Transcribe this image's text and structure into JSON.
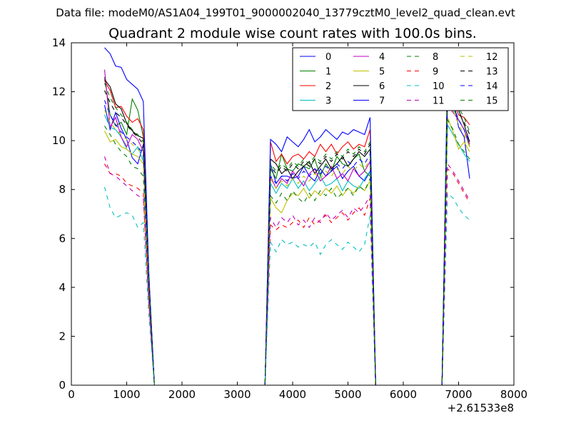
{
  "figure": {
    "suptitle": "Data file: modeM0/AS1A04_199T01_9000002040_13779cztM0_level2_quad_clean.evt",
    "title": "Quadrant 2 module wise count rates with 100.0s bins."
  },
  "chart_data": {
    "type": "line",
    "title": "Quadrant 2 module wise count rates with 100.0s bins.",
    "xlabel": "",
    "ylabel": "",
    "xlim": [
      0,
      8000
    ],
    "ylim": [
      0,
      14
    ],
    "x_offset_label": "+2.61533e8",
    "x_ticks": [
      "0",
      "1000",
      "2000",
      "3000",
      "4000",
      "5000",
      "6000",
      "7000",
      "8000"
    ],
    "y_ticks": [
      "0",
      "2",
      "4",
      "6",
      "8",
      "10",
      "12",
      "14"
    ],
    "grid": false,
    "legend_position": "top-right",
    "x": [
      600,
      700,
      800,
      900,
      1000,
      1100,
      1200,
      1300,
      1400,
      1500,
      1600,
      1700,
      1800,
      1900,
      2000,
      2100,
      2200,
      2300,
      2400,
      2500,
      2600,
      2700,
      2800,
      2900,
      3000,
      3100,
      3200,
      3300,
      3400,
      3500,
      3600,
      3700,
      3800,
      3900,
      4000,
      4100,
      4200,
      4300,
      4400,
      4500,
      4600,
      4700,
      4800,
      4900,
      5000,
      5100,
      5200,
      5300,
      5400,
      5500,
      5600,
      5700,
      5800,
      5900,
      6000,
      6100,
      6200,
      6300,
      6400,
      6500,
      6600,
      6700,
      6800,
      6900,
      7000,
      7100,
      7200
    ],
    "series": [
      {
        "name": "0",
        "color": "#0000ff",
        "dash": "solid",
        "values": [
          11.45,
          10.45,
          11.15,
          10.5,
          10.05,
          9.3,
          9.05,
          9.85,
          4.2,
          0,
          0,
          0,
          0,
          0,
          0,
          0,
          0,
          0,
          0,
          0,
          0,
          0,
          0,
          0,
          0,
          0,
          0,
          0,
          0,
          0,
          9.05,
          8.25,
          8.55,
          8.55,
          8.45,
          8.55,
          8.95,
          8.55,
          8.35,
          8.85,
          8.55,
          8.75,
          8.95,
          8.45,
          8.75,
          8.95,
          8.55,
          8.35,
          8.75,
          0,
          0,
          0,
          0,
          0,
          0,
          0,
          0,
          0,
          0,
          0,
          0,
          0,
          11.95,
          11.75,
          10.55,
          10.15,
          8.45
        ]
      },
      {
        "name": "1",
        "color": "#008000",
        "dash": "solid",
        "values": [
          12.6,
          11.05,
          10.6,
          10.75,
          10.25,
          11.7,
          11.25,
          10.15,
          4.3,
          0,
          0,
          0,
          0,
          0,
          0,
          0,
          0,
          0,
          0,
          0,
          0,
          0,
          0,
          0,
          0,
          0,
          0,
          0,
          0,
          0,
          8.85,
          8.45,
          9.45,
          8.85,
          8.75,
          9.05,
          8.95,
          8.85,
          9.25,
          8.55,
          9.05,
          8.75,
          9.35,
          9.05,
          8.95,
          9.25,
          9.45,
          8.75,
          8.55,
          0,
          0,
          0,
          0,
          0,
          0,
          0,
          0,
          0,
          0,
          0,
          0,
          0,
          11.6,
          11.35,
          10.85,
          10.45,
          9.75
        ]
      },
      {
        "name": "2",
        "color": "#ff0000",
        "dash": "solid",
        "values": [
          12.45,
          12.05,
          11.35,
          11.4,
          11.0,
          10.75,
          10.9,
          10.45,
          4.4,
          0,
          0,
          0,
          0,
          0,
          0,
          0,
          0,
          0,
          0,
          0,
          0,
          0,
          0,
          0,
          0,
          0,
          0,
          0,
          0,
          0,
          9.95,
          9.15,
          9.45,
          9.05,
          9.35,
          9.45,
          9.25,
          9.55,
          9.35,
          9.85,
          9.55,
          9.85,
          9.45,
          9.75,
          9.95,
          9.65,
          9.85,
          9.75,
          10.45,
          0,
          0,
          0,
          0,
          0,
          0,
          0,
          0,
          0,
          0,
          0,
          0,
          0,
          12.15,
          11.65,
          11.05,
          10.95,
          10.65
        ]
      },
      {
        "name": "3",
        "color": "#00bfbf",
        "dash": "solid",
        "values": [
          11.05,
          10.55,
          10.45,
          10.15,
          9.65,
          9.45,
          9.75,
          9.15,
          3.9,
          0,
          0,
          0,
          0,
          0,
          0,
          0,
          0,
          0,
          0,
          0,
          0,
          0,
          0,
          0,
          0,
          0,
          0,
          0,
          0,
          0,
          8.25,
          7.85,
          8.25,
          8.05,
          8.45,
          8.05,
          8.35,
          7.95,
          8.25,
          8.55,
          8.15,
          8.25,
          8.45,
          7.95,
          8.35,
          8.15,
          8.05,
          8.45,
          8.75,
          0,
          0,
          0,
          0,
          0,
          0,
          0,
          0,
          0,
          0,
          0,
          0,
          0,
          10.65,
          10.25,
          9.85,
          9.45,
          9.15
        ]
      },
      {
        "name": "4",
        "color": "#bf00bf",
        "dash": "solid",
        "values": [
          12.9,
          10.55,
          10.95,
          10.15,
          9.75,
          10.25,
          10.05,
          9.55,
          4.1,
          0,
          0,
          0,
          0,
          0,
          0,
          0,
          0,
          0,
          0,
          0,
          0,
          0,
          0,
          0,
          0,
          0,
          0,
          0,
          0,
          0,
          8.55,
          8.05,
          8.45,
          8.25,
          8.75,
          8.45,
          8.15,
          8.65,
          8.85,
          8.35,
          8.55,
          8.95,
          8.45,
          8.65,
          8.35,
          8.85,
          8.55,
          8.75,
          9.15,
          0,
          0,
          0,
          0,
          0,
          0,
          0,
          0,
          0,
          0,
          0,
          0,
          0,
          11.45,
          11.15,
          10.85,
          10.45,
          9.85
        ]
      },
      {
        "name": "5",
        "color": "#bfbf00",
        "dash": "solid",
        "values": [
          10.4,
          9.95,
          10.05,
          9.75,
          9.65,
          9.45,
          9.35,
          9.05,
          3.8,
          0,
          0,
          0,
          0,
          0,
          0,
          0,
          0,
          0,
          0,
          0,
          0,
          0,
          0,
          0,
          0,
          0,
          0,
          0,
          0,
          0,
          7.65,
          7.25,
          7.05,
          7.55,
          7.85,
          7.75,
          8.05,
          7.65,
          7.95,
          7.75,
          8.05,
          7.85,
          8.15,
          7.75,
          8.05,
          7.85,
          8.15,
          7.95,
          8.35,
          0,
          0,
          0,
          0,
          0,
          0,
          0,
          0,
          0,
          0,
          0,
          0,
          0,
          10.95,
          10.35,
          9.65,
          9.95,
          9.55
        ]
      },
      {
        "name": "6",
        "color": "#000000",
        "dash": "solid",
        "values": [
          12.5,
          12.2,
          11.5,
          11.3,
          10.7,
          10.4,
          10.2,
          10.1,
          4.35,
          0,
          0,
          0,
          0,
          0,
          0,
          0,
          0,
          0,
          0,
          0,
          0,
          0,
          0,
          0,
          0,
          0,
          0,
          0,
          0,
          0,
          9.25,
          9.05,
          8.65,
          8.85,
          8.45,
          8.75,
          8.95,
          9.15,
          8.65,
          8.95,
          9.25,
          8.85,
          9.05,
          9.35,
          8.95,
          9.25,
          9.55,
          9.35,
          9.65,
          0,
          0,
          0,
          0,
          0,
          0,
          0,
          0,
          0,
          0,
          0,
          0,
          0,
          12.35,
          12.05,
          11.25,
          10.65,
          9.95
        ]
      },
      {
        "name": "7",
        "color": "#0000ff",
        "dash": "solid",
        "values": [
          13.8,
          13.55,
          13.05,
          13.0,
          12.5,
          12.3,
          12.1,
          11.6,
          4.6,
          0,
          0,
          0,
          0,
          0,
          0,
          0,
          0,
          0,
          0,
          0,
          0,
          0,
          0,
          0,
          0,
          0,
          0,
          0,
          0,
          0,
          10.05,
          9.85,
          9.55,
          10.15,
          9.95,
          9.75,
          10.05,
          10.45,
          9.95,
          10.15,
          10.45,
          10.25,
          10.05,
          10.35,
          10.25,
          10.45,
          10.35,
          10.25,
          10.95,
          0,
          0,
          0,
          0,
          0,
          0,
          0,
          0,
          0,
          0,
          0,
          0,
          0,
          13.1,
          12.85,
          12.05,
          11.55,
          11.35
        ]
      },
      {
        "name": "8",
        "color": "#008000",
        "dash": "dashed",
        "values": [
          10.6,
          10.25,
          9.85,
          9.55,
          9.35,
          8.95,
          8.85,
          8.55,
          3.7,
          0,
          0,
          0,
          0,
          0,
          0,
          0,
          0,
          0,
          0,
          0,
          0,
          0,
          0,
          0,
          0,
          0,
          0,
          0,
          0,
          0,
          7.75,
          7.45,
          7.85,
          7.55,
          7.95,
          7.65,
          7.45,
          7.85,
          7.55,
          7.95,
          7.75,
          8.05,
          7.65,
          7.85,
          8.05,
          7.75,
          8.15,
          7.95,
          8.45,
          0,
          0,
          0,
          0,
          0,
          0,
          0,
          0,
          0,
          0,
          0,
          0,
          0,
          10.85,
          10.45,
          9.85,
          9.55,
          9.25
        ]
      },
      {
        "name": "9",
        "color": "#ff0000",
        "dash": "dashed",
        "values": [
          9.05,
          8.65,
          8.65,
          8.55,
          8.25,
          8.15,
          8.05,
          7.85,
          3.4,
          0,
          0,
          0,
          0,
          0,
          0,
          0,
          0,
          0,
          0,
          0,
          0,
          0,
          0,
          0,
          0,
          0,
          0,
          0,
          0,
          0,
          6.55,
          6.35,
          6.55,
          6.45,
          6.65,
          6.75,
          6.45,
          6.85,
          6.55,
          6.75,
          6.95,
          6.65,
          6.85,
          7.05,
          6.75,
          7.05,
          7.25,
          6.95,
          7.65,
          0,
          0,
          0,
          0,
          0,
          0,
          0,
          0,
          0,
          0,
          0,
          0,
          0,
          8.85,
          8.65,
          8.25,
          7.85,
          7.45
        ]
      },
      {
        "name": "10",
        "color": "#00bfbf",
        "dash": "dashed",
        "values": [
          8.1,
          7.25,
          6.85,
          6.95,
          7.05,
          6.95,
          6.45,
          6.65,
          2.9,
          0,
          0,
          0,
          0,
          0,
          0,
          0,
          0,
          0,
          0,
          0,
          0,
          0,
          0,
          0,
          0,
          0,
          0,
          0,
          0,
          0,
          5.85,
          5.45,
          5.95,
          5.75,
          5.85,
          5.65,
          5.75,
          5.65,
          5.85,
          5.35,
          5.75,
          5.95,
          5.75,
          5.55,
          5.85,
          5.65,
          5.45,
          5.75,
          6.95,
          0,
          0,
          0,
          0,
          0,
          0,
          0,
          0,
          0,
          0,
          0,
          0,
          0,
          7.85,
          7.65,
          7.25,
          6.95,
          6.75
        ]
      },
      {
        "name": "11",
        "color": "#bf00bf",
        "dash": "dashed",
        "values": [
          9.35,
          8.65,
          8.55,
          8.35,
          8.15,
          7.95,
          7.75,
          7.65,
          3.35,
          0,
          0,
          0,
          0,
          0,
          0,
          0,
          0,
          0,
          0,
          0,
          0,
          0,
          0,
          0,
          0,
          0,
          0,
          0,
          0,
          0,
          6.85,
          6.45,
          6.85,
          6.65,
          6.95,
          6.55,
          6.75,
          6.45,
          6.85,
          6.65,
          7.05,
          6.75,
          6.95,
          7.15,
          6.85,
          7.25,
          7.05,
          7.35,
          7.75,
          0,
          0,
          0,
          0,
          0,
          0,
          0,
          0,
          0,
          0,
          0,
          0,
          0,
          9.05,
          8.75,
          8.35,
          7.95,
          7.55
        ]
      },
      {
        "name": "12",
        "color": "#bfbf00",
        "dash": "dashed",
        "values": [
          11.25,
          10.75,
          10.45,
          10.25,
          10.05,
          9.85,
          9.65,
          9.35,
          4.0,
          0,
          0,
          0,
          0,
          0,
          0,
          0,
          0,
          0,
          0,
          0,
          0,
          0,
          0,
          0,
          0,
          0,
          0,
          0,
          0,
          0,
          8.45,
          8.05,
          8.35,
          8.15,
          8.45,
          8.25,
          8.55,
          8.35,
          8.65,
          8.45,
          8.75,
          8.55,
          8.85,
          8.65,
          8.95,
          8.75,
          9.05,
          8.85,
          9.25,
          0,
          0,
          0,
          0,
          0,
          0,
          0,
          0,
          0,
          0,
          0,
          0,
          0,
          11.65,
          11.25,
          10.65,
          10.25,
          9.75
        ]
      },
      {
        "name": "13",
        "color": "#000000",
        "dash": "dashed",
        "values": [
          12.05,
          11.55,
          11.15,
          10.95,
          10.65,
          10.35,
          10.15,
          9.85,
          4.25,
          0,
          0,
          0,
          0,
          0,
          0,
          0,
          0,
          0,
          0,
          0,
          0,
          0,
          0,
          0,
          0,
          0,
          0,
          0,
          0,
          0,
          8.95,
          8.65,
          8.95,
          8.75,
          9.05,
          8.85,
          9.15,
          8.95,
          9.25,
          9.05,
          9.35,
          9.15,
          9.45,
          9.25,
          9.55,
          9.35,
          9.65,
          9.45,
          9.85,
          0,
          0,
          0,
          0,
          0,
          0,
          0,
          0,
          0,
          0,
          0,
          0,
          0,
          12.25,
          11.85,
          11.15,
          10.75,
          10.25
        ]
      },
      {
        "name": "14",
        "color": "#0000ff",
        "dash": "dashed",
        "values": [
          11.65,
          11.05,
          10.65,
          10.35,
          10.15,
          9.95,
          9.75,
          9.45,
          4.05,
          0,
          0,
          0,
          0,
          0,
          0,
          0,
          0,
          0,
          0,
          0,
          0,
          0,
          0,
          0,
          0,
          0,
          0,
          0,
          0,
          0,
          8.55,
          8.25,
          8.55,
          8.35,
          8.65,
          8.45,
          8.75,
          8.55,
          8.85,
          8.65,
          8.95,
          8.75,
          9.05,
          8.85,
          9.15,
          8.95,
          9.25,
          9.05,
          9.45,
          0,
          0,
          0,
          0,
          0,
          0,
          0,
          0,
          0,
          0,
          0,
          0,
          0,
          11.85,
          11.45,
          10.85,
          10.45,
          9.95
        ]
      },
      {
        "name": "15",
        "color": "#008000",
        "dash": "dashed",
        "values": [
          12.35,
          11.75,
          11.35,
          11.05,
          10.75,
          10.45,
          10.25,
          9.95,
          4.3,
          0,
          0,
          0,
          0,
          0,
          0,
          0,
          0,
          0,
          0,
          0,
          0,
          0,
          0,
          0,
          0,
          0,
          0,
          0,
          0,
          0,
          9.05,
          8.75,
          9.05,
          8.85,
          9.15,
          8.95,
          9.25,
          9.05,
          9.35,
          9.15,
          9.45,
          9.25,
          9.55,
          9.35,
          9.65,
          9.45,
          9.75,
          9.55,
          9.95,
          0,
          0,
          0,
          0,
          0,
          0,
          0,
          0,
          0,
          0,
          0,
          0,
          0,
          12.45,
          12.05,
          11.35,
          10.95,
          10.35
        ]
      }
    ]
  }
}
